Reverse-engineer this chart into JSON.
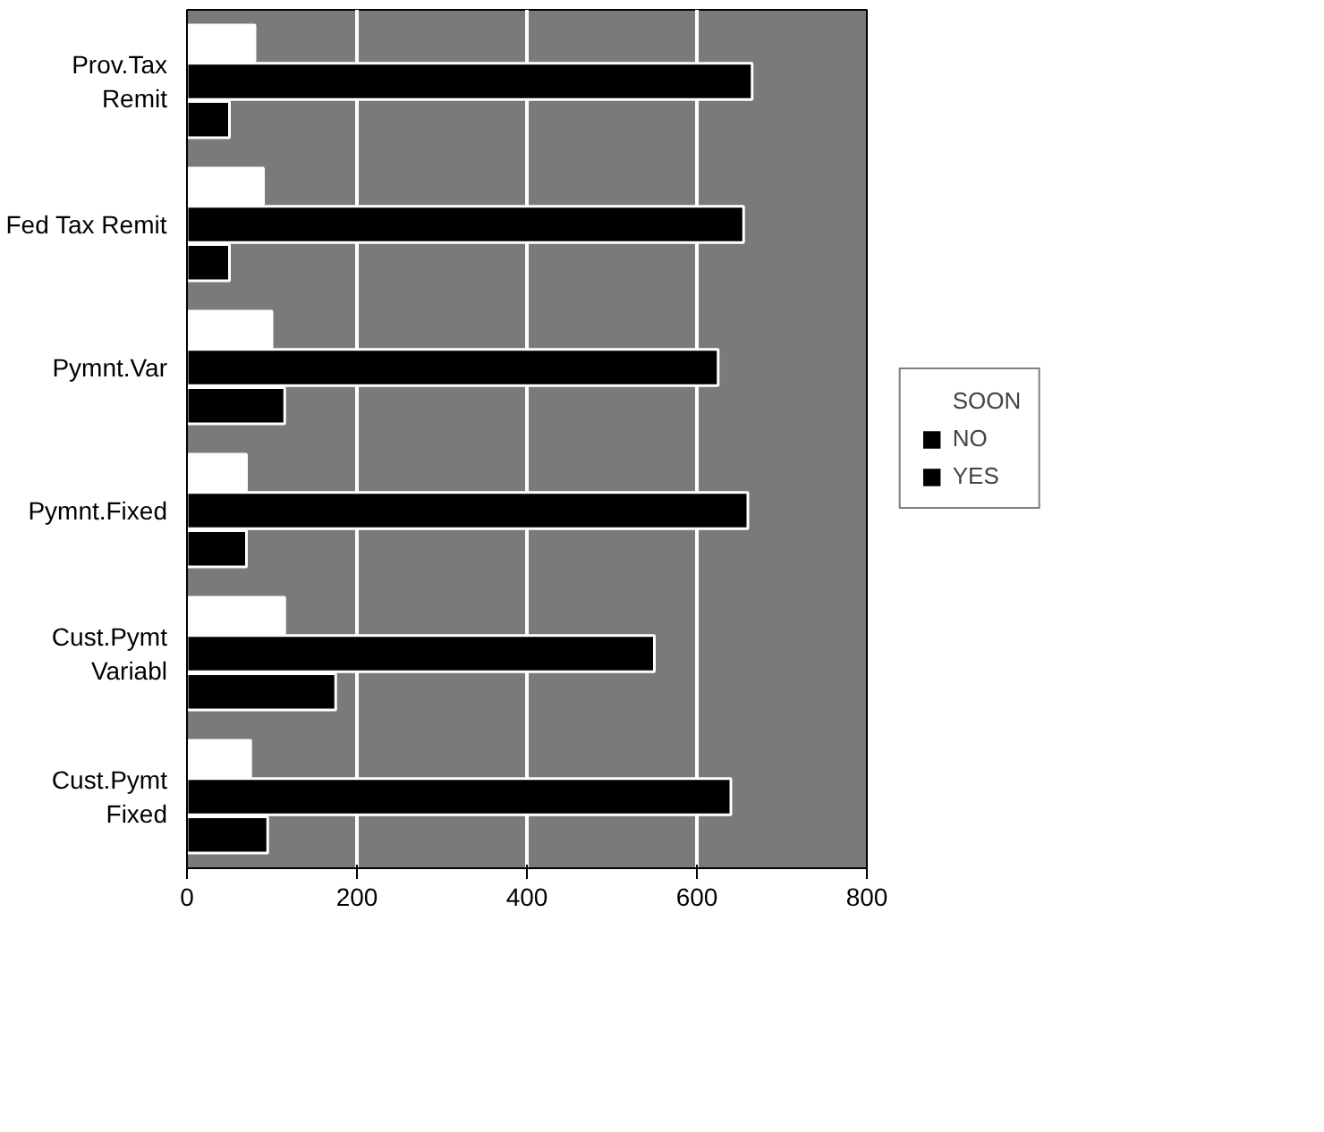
{
  "chart_data": {
    "type": "bar",
    "orientation": "horizontal",
    "categories": [
      "Prov.Tax\nRemit",
      "Fed Tax Remit",
      "Pymnt.Var",
      "Pymnt.Fixed",
      "Cust.Pymt\nVariabl",
      "Cust.Pymt\nFixed"
    ],
    "series": [
      {
        "name": "SOON",
        "color": "#ffffff",
        "values": [
          80,
          90,
          100,
          70,
          115,
          75
        ]
      },
      {
        "name": "NO",
        "color": "#000000",
        "values": [
          665,
          655,
          625,
          660,
          550,
          640
        ]
      },
      {
        "name": "YES",
        "color": "#000000",
        "values": [
          50,
          50,
          115,
          70,
          175,
          95
        ]
      }
    ],
    "xlim": [
      0,
      800
    ],
    "xticks": [
      0,
      200,
      400,
      600,
      800
    ],
    "grid": "x",
    "legend": "right"
  }
}
